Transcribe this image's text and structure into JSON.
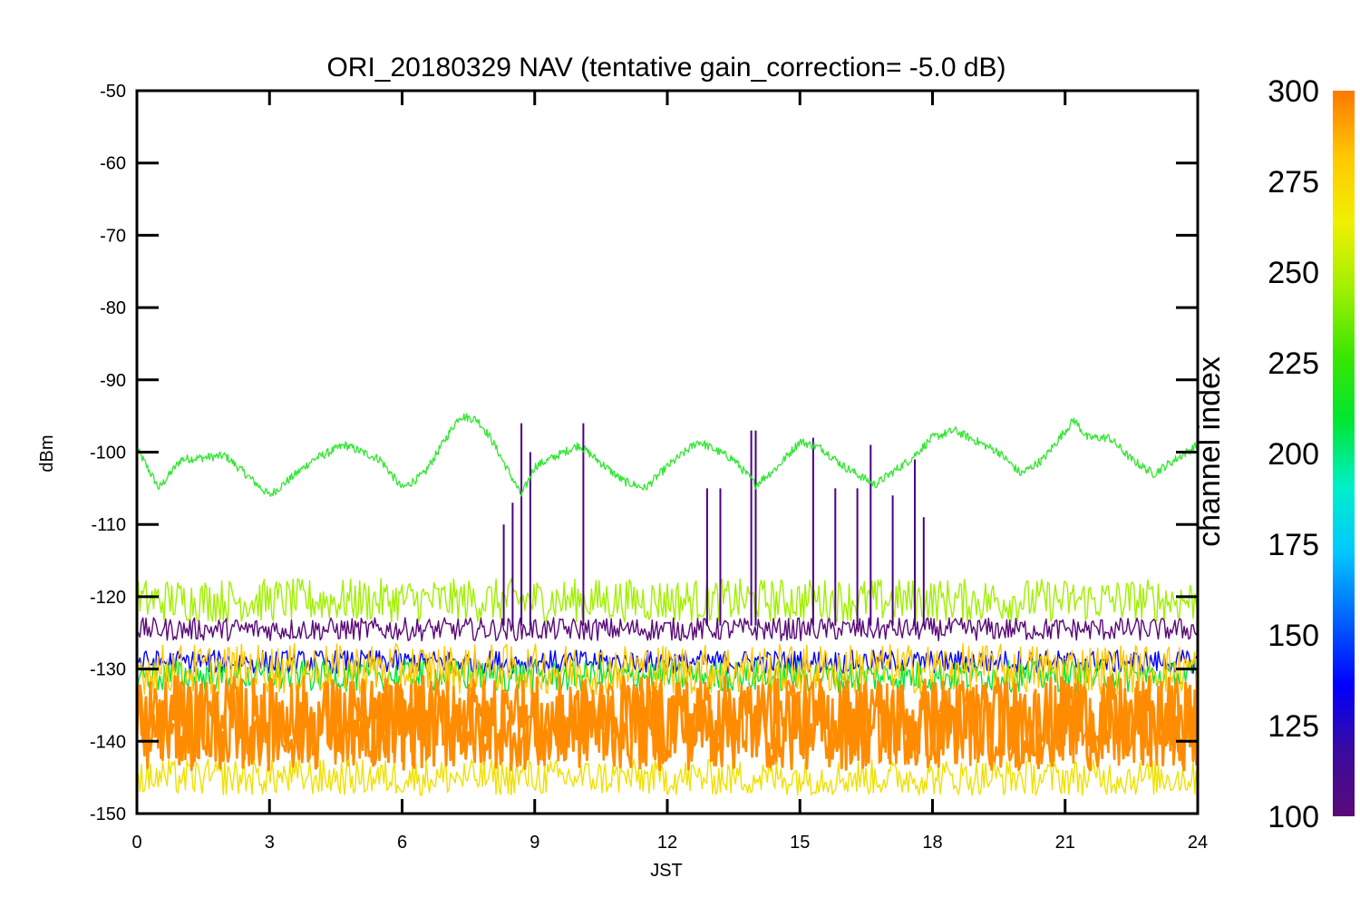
{
  "chart_data": {
    "type": "line",
    "title": "ORI_20180329 NAV (tentative gain_correction= -5.0 dB)",
    "xlabel": "JST",
    "ylabel": "dBm",
    "xlim": [
      0,
      24
    ],
    "ylim": [
      -150,
      -50
    ],
    "xticks": [
      "0",
      "3",
      "6",
      "9",
      "12",
      "15",
      "18",
      "21",
      "24"
    ],
    "yticks": [
      "-50",
      "-60",
      "-70",
      "-80",
      "-90",
      "-100",
      "-110",
      "-120",
      "-130",
      "-140",
      "-150"
    ],
    "colorbar": {
      "label": "channel index",
      "range": [
        100,
        300
      ],
      "ticks": [
        "300",
        "275",
        "250",
        "225",
        "200",
        "175",
        "150",
        "125",
        "100"
      ],
      "colors": [
        "#5a0a78",
        "#3a0aa0",
        "#0000ff",
        "#0064ff",
        "#00c8ff",
        "#00f0c8",
        "#00e632",
        "#3ce600",
        "#a0f000",
        "#f0f000",
        "#ffc800",
        "#ff7800"
      ]
    },
    "series": [
      {
        "color": "#33e633",
        "x": [
          0,
          0.5,
          1,
          2,
          3,
          4,
          4.7,
          5.5,
          6,
          6.5,
          7.3,
          7.7,
          8,
          8.7,
          9,
          10,
          11,
          11.5,
          12,
          12.7,
          13.5,
          14,
          14.5,
          15,
          15.5,
          16,
          16.7,
          17.5,
          18,
          18.5,
          19.5,
          20,
          20.5,
          21.2,
          21.5,
          22,
          22.5,
          23,
          24
        ],
        "values": [
          -99.5,
          -105,
          -101,
          -100.5,
          -106,
          -101,
          -99,
          -101,
          -105,
          -103,
          -95,
          -95.5,
          -98,
          -106,
          -102,
          -99,
          -104,
          -105,
          -102,
          -98.5,
          -101,
          -104.5,
          -102,
          -98.5,
          -99.5,
          -102,
          -104.5,
          -101,
          -98,
          -97,
          -100,
          -103,
          -101,
          -95.5,
          -98,
          -98,
          -101,
          -103,
          -99
        ]
      },
      {
        "color": "#a0f000",
        "x": [
          0,
          24
        ],
        "values": [
          -120.5,
          -120.5
        ]
      },
      {
        "color": "#5a0a78",
        "x": [
          0,
          24
        ],
        "values": [
          -124.5,
          -124.5
        ]
      },
      {
        "color": "#0000ff",
        "x": [
          0,
          24
        ],
        "values": [
          -129,
          -129
        ]
      },
      {
        "color": "#00e632",
        "x": [
          0,
          24
        ],
        "values": [
          -131,
          -131
        ]
      },
      {
        "color": "#ffc800",
        "x": [
          0,
          24
        ],
        "values": [
          -130,
          -130
        ]
      },
      {
        "color": "#ff8c00",
        "x": [
          0,
          24
        ],
        "values": [
          -137.5,
          -137.5
        ]
      },
      {
        "color": "#f0e000",
        "x": [
          0,
          24
        ],
        "values": [
          -145,
          -145
        ]
      }
    ],
    "spikes": {
      "color": "#4b0082",
      "x": [
        8.3,
        8.5,
        8.7,
        8.9,
        10.1,
        12.9,
        13.2,
        13.9,
        14.0,
        15.3,
        15.8,
        16.3,
        16.6,
        17.1,
        17.6,
        17.8
      ],
      "values": [
        -110,
        -107,
        -96,
        -100,
        -96,
        -105,
        -105,
        -97,
        -97,
        -98,
        -105,
        -105,
        -99,
        -106,
        -101,
        -109
      ]
    }
  }
}
